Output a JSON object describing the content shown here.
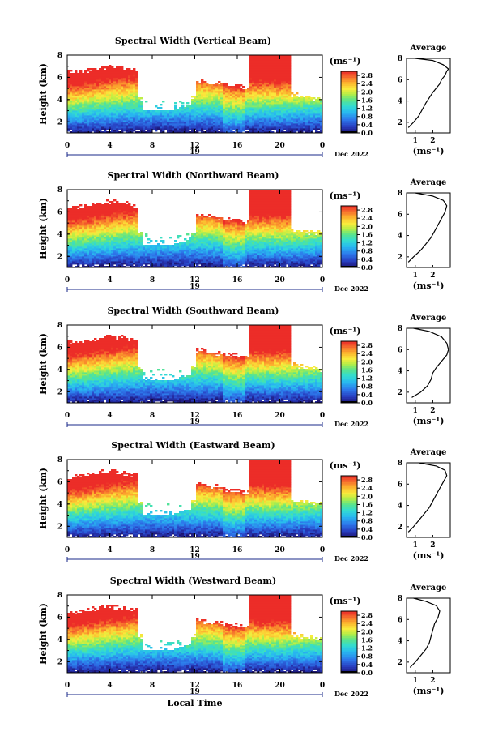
{
  "chart_data": [
    {
      "type": "heatmap",
      "title": "Spectral Width (Vertical Beam)",
      "ylabel": "Height (km)",
      "ylim": [
        1,
        8
      ],
      "x_ticks": [
        "0",
        "4",
        "8",
        "12",
        "16",
        "20",
        "0"
      ],
      "day_label": "19",
      "date_label": "Dec 2022",
      "colorbar": {
        "unit": "(ms⁻¹)",
        "ticks": [
          "0.0",
          "0.4",
          "0.8",
          "1.2",
          "1.6",
          "2.0",
          "2.4",
          "2.8"
        ],
        "range": [
          0.0,
          3.0
        ]
      },
      "profile": {
        "title": "Average",
        "xlabel": "(ms⁻¹)",
        "xticks": [
          "1",
          "2"
        ],
        "xlim": [
          0.5,
          3.0
        ],
        "ylim": [
          1,
          8
        ],
        "points": [
          [
            0.6,
            1.5
          ],
          [
            0.9,
            2.0
          ],
          [
            1.2,
            2.6
          ],
          [
            1.4,
            3.2
          ],
          [
            1.6,
            3.8
          ],
          [
            1.8,
            4.3
          ],
          [
            2.0,
            4.8
          ],
          [
            2.2,
            5.2
          ],
          [
            2.4,
            5.6
          ],
          [
            2.5,
            6.0
          ],
          [
            2.7,
            6.4
          ],
          [
            2.8,
            6.8
          ],
          [
            2.9,
            7.0
          ],
          [
            2.6,
            7.4
          ],
          [
            2.0,
            7.8
          ],
          [
            1.0,
            8.0
          ]
        ]
      }
    },
    {
      "type": "heatmap",
      "title": "Spectral Width (Northward Beam)",
      "ylabel": "Height (km)",
      "ylim": [
        1,
        8
      ],
      "x_ticks": [
        "0",
        "4",
        "8",
        "12",
        "16",
        "20",
        "0"
      ],
      "day_label": "19",
      "date_label": "Dec 2022",
      "colorbar": {
        "unit": "(ms⁻¹)",
        "ticks": [
          "0.0",
          "0.4",
          "0.8",
          "1.2",
          "1.6",
          "2.0",
          "2.4",
          "2.8"
        ],
        "range": [
          0.0,
          3.0
        ]
      },
      "profile": {
        "title": "Average",
        "xlabel": "(ms⁻¹)",
        "xticks": [
          "1",
          "2"
        ],
        "xlim": [
          0.5,
          3.0
        ],
        "ylim": [
          1,
          8
        ],
        "points": [
          [
            0.6,
            1.5
          ],
          [
            0.9,
            2.0
          ],
          [
            1.3,
            2.6
          ],
          [
            1.6,
            3.2
          ],
          [
            1.9,
            3.8
          ],
          [
            2.1,
            4.4
          ],
          [
            2.3,
            5.0
          ],
          [
            2.5,
            5.6
          ],
          [
            2.7,
            6.2
          ],
          [
            2.8,
            6.8
          ],
          [
            2.6,
            7.3
          ],
          [
            2.0,
            7.7
          ],
          [
            1.0,
            8.0
          ]
        ]
      }
    },
    {
      "type": "heatmap",
      "title": "Spectral Width (Southward Beam)",
      "ylabel": "Height (km)",
      "ylim": [
        1,
        8
      ],
      "x_ticks": [
        "0",
        "4",
        "8",
        "12",
        "16",
        "20",
        "0"
      ],
      "day_label": "19",
      "date_label": "Dec 2022",
      "colorbar": {
        "unit": "(ms⁻¹)",
        "ticks": [
          "0.0",
          "0.4",
          "0.8",
          "1.2",
          "1.6",
          "2.0",
          "2.4",
          "2.8"
        ],
        "range": [
          0.0,
          3.0
        ]
      },
      "profile": {
        "title": "Average",
        "xlabel": "(ms⁻¹)",
        "xticks": [
          "1",
          "2"
        ],
        "xlim": [
          0.5,
          3.0
        ],
        "ylim": [
          1,
          8
        ],
        "points": [
          [
            0.8,
            1.5
          ],
          [
            1.3,
            2.0
          ],
          [
            1.7,
            2.6
          ],
          [
            1.9,
            3.2
          ],
          [
            2.0,
            3.8
          ],
          [
            2.2,
            4.3
          ],
          [
            2.5,
            4.9
          ],
          [
            2.8,
            5.5
          ],
          [
            2.9,
            6.0
          ],
          [
            2.8,
            6.6
          ],
          [
            2.5,
            7.2
          ],
          [
            1.8,
            7.7
          ],
          [
            0.9,
            8.0
          ]
        ]
      }
    },
    {
      "type": "heatmap",
      "title": "Spectral Width (Eastward Beam)",
      "ylabel": "Height (km)",
      "ylim": [
        1,
        8
      ],
      "x_ticks": [
        "0",
        "4",
        "8",
        "12",
        "16",
        "20",
        "0"
      ],
      "day_label": "19",
      "date_label": "Dec 2022",
      "colorbar": {
        "unit": "(ms⁻¹)",
        "ticks": [
          "0.0",
          "0.4",
          "0.8",
          "1.2",
          "1.6",
          "2.0",
          "2.4",
          "2.8"
        ],
        "range": [
          0.0,
          3.0
        ]
      },
      "profile": {
        "title": "Average",
        "xlabel": "(ms⁻¹)",
        "xticks": [
          "1",
          "2"
        ],
        "xlim": [
          0.5,
          3.0
        ],
        "ylim": [
          1,
          8
        ],
        "points": [
          [
            0.6,
            1.5
          ],
          [
            0.9,
            2.0
          ],
          [
            1.2,
            2.6
          ],
          [
            1.5,
            3.2
          ],
          [
            1.8,
            3.8
          ],
          [
            2.0,
            4.4
          ],
          [
            2.2,
            5.0
          ],
          [
            2.4,
            5.6
          ],
          [
            2.6,
            6.2
          ],
          [
            2.8,
            6.8
          ],
          [
            2.7,
            7.3
          ],
          [
            2.2,
            7.7
          ],
          [
            1.2,
            8.0
          ]
        ]
      }
    },
    {
      "type": "heatmap",
      "title": "Spectral Width (Westward Beam)",
      "ylabel": "Height (km)",
      "xlabel": "Local Time",
      "ylim": [
        1,
        8
      ],
      "x_ticks": [
        "0",
        "4",
        "8",
        "12",
        "16",
        "20",
        "0"
      ],
      "day_label": "19",
      "date_label": "Dec 2022",
      "colorbar": {
        "unit": "(ms⁻¹)",
        "ticks": [
          "0.0",
          "0.4",
          "0.8",
          "1.2",
          "1.6",
          "2.0",
          "2.4",
          "2.8"
        ],
        "range": [
          0.0,
          3.0
        ]
      },
      "profile": {
        "title": "Average",
        "xlabel": "(ms⁻¹)",
        "xticks": [
          "1",
          "2"
        ],
        "xlim": [
          0.5,
          3.0
        ],
        "ylim": [
          1,
          8
        ],
        "points": [
          [
            0.7,
            1.5
          ],
          [
            1.0,
            2.0
          ],
          [
            1.3,
            2.6
          ],
          [
            1.6,
            3.2
          ],
          [
            1.8,
            3.8
          ],
          [
            1.9,
            4.4
          ],
          [
            2.0,
            5.0
          ],
          [
            2.1,
            5.6
          ],
          [
            2.3,
            6.2
          ],
          [
            2.4,
            6.8
          ],
          [
            2.2,
            7.3
          ],
          [
            1.6,
            7.7
          ],
          [
            0.9,
            8.0
          ]
        ]
      }
    }
  ]
}
